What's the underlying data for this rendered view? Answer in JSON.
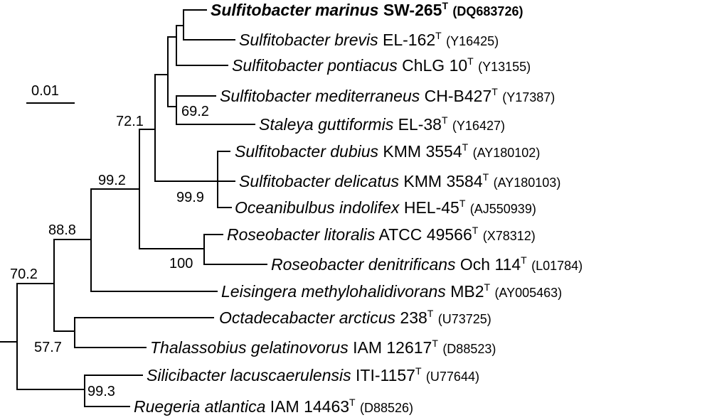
{
  "scale_bar": {
    "label": "0.01"
  },
  "taxa": [
    {
      "id": "t1",
      "species": "Sulfitobacter marinus",
      "strain": "SW-265",
      "type_sup": "T",
      "accession": "(DQ683726)",
      "bold": true
    },
    {
      "id": "t2",
      "species": "Sulfitobacter brevis",
      "strain": "EL-162",
      "type_sup": "T",
      "accession": "(Y16425)",
      "bold": false
    },
    {
      "id": "t3",
      "species": "Sulfitobacter pontiacus",
      "strain": "ChLG 10",
      "type_sup": "T",
      "accession": "(Y13155)",
      "bold": false
    },
    {
      "id": "t4",
      "species": "Sulfitobacter mediterraneus",
      "strain": "CH-B427",
      "type_sup": "T",
      "accession": "(Y17387)",
      "bold": false
    },
    {
      "id": "t5",
      "species": "Staleya guttiformis",
      "strain": "EL-38",
      "type_sup": "T",
      "accession": "(Y16427)",
      "bold": false
    },
    {
      "id": "t6",
      "species": "Sulfitobacter dubius",
      "strain": "KMM 3554",
      "type_sup": "T",
      "accession": "(AY180102)",
      "bold": false
    },
    {
      "id": "t7",
      "species": "Sulfitobacter delicatus",
      "strain": "KMM 3584",
      "type_sup": "T",
      "accession": "(AY180103)",
      "bold": false
    },
    {
      "id": "t8",
      "species": "Oceanibulbus indolifex",
      "strain": "HEL-45",
      "type_sup": "T",
      "accession": "(AJ550939)",
      "bold": false
    },
    {
      "id": "t9",
      "species": "Roseobacter litoralis",
      "strain": "ATCC 49566",
      "type_sup": "T",
      "accession": "(X78312)",
      "bold": false
    },
    {
      "id": "t10",
      "species": "Roseobacter denitrificans",
      "strain": "Och 114",
      "type_sup": "T",
      "accession": "(L01784)",
      "bold": false
    },
    {
      "id": "t11",
      "species": "Leisingera methylohalidivorans",
      "strain": "MB2",
      "type_sup": "T",
      "accession": "(AY005463)",
      "bold": false
    },
    {
      "id": "t12",
      "species": "Octadecabacter arcticus",
      "strain": "238",
      "type_sup": "T",
      "accession": "(U73725)",
      "bold": false
    },
    {
      "id": "t13",
      "species": "Thalassobius gelatinovorus",
      "strain": "IAM 12617",
      "type_sup": "T",
      "accession": "(D88523)",
      "bold": false
    },
    {
      "id": "t14",
      "species": "Silicibacter lacuscaerulensis",
      "strain": "ITI-1157",
      "type_sup": "T",
      "accession": "(U77644)",
      "bold": false
    },
    {
      "id": "t15",
      "species": "Ruegeria atlantica",
      "strain": "IAM 14463",
      "type_sup": "T",
      "accession": "(D88526)",
      "bold": false
    }
  ],
  "bootstrap": {
    "n_marinus_brevis_pontiacus_to_staleya": "72.1",
    "n_mediterraneus_staleya": "69.2",
    "n_sulfitobacter_group": "99.2",
    "n_dubius_oceanibulbus": "99.9",
    "n_roseobacter": "100",
    "n_with_leisingera": "88.8",
    "n_root_upper": "70.2",
    "n_octadecabacter_thalassobius": "57.7",
    "n_silicibacter_ruegeria": "99.3"
  }
}
